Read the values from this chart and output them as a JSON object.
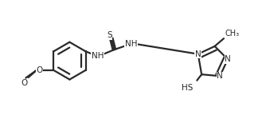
{
  "bg_color": "#ffffff",
  "line_color": "#2a2a2a",
  "line_width": 1.6,
  "font_size": 7.5,
  "fig_width": 3.34,
  "fig_height": 1.49,
  "dpi": 100,
  "xlim": [
    0,
    10
  ],
  "ylim": [
    0,
    4.5
  ]
}
